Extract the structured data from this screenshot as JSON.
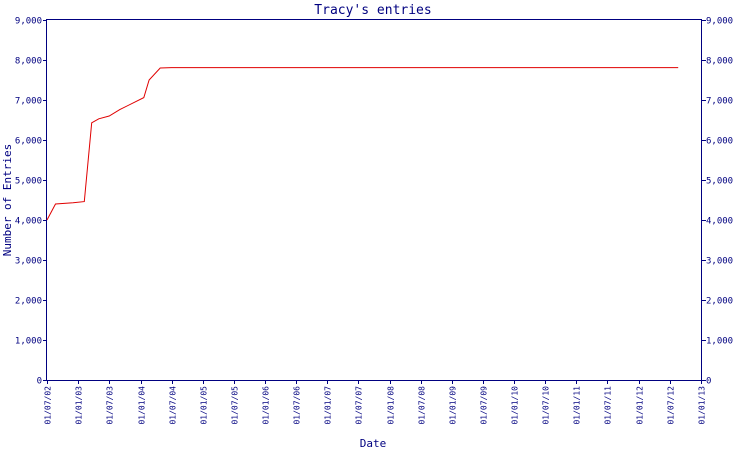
{
  "chart_data": {
    "type": "line",
    "title": "Tracy's entries",
    "xlabel": "Date",
    "ylabel": "Number of Entries",
    "ylim": [
      0,
      9000
    ],
    "xlim": [
      "2002-07-01",
      "2013-01-01"
    ],
    "y_ticks": [
      0,
      1000,
      2000,
      3000,
      4000,
      5000,
      6000,
      7000,
      8000,
      9000
    ],
    "y_tick_labels": [
      "0",
      "1,000",
      "2,000",
      "3,000",
      "4,000",
      "5,000",
      "6,000",
      "7,000",
      "8,000",
      "9,000"
    ],
    "x_ticks": [
      "2002-07-01",
      "2003-01-01",
      "2003-07-01",
      "2004-01-01",
      "2004-07-01",
      "2005-01-01",
      "2005-07-01",
      "2006-01-01",
      "2006-07-01",
      "2007-01-01",
      "2007-07-01",
      "2008-01-01",
      "2008-07-01",
      "2009-01-01",
      "2009-07-01",
      "2010-01-01",
      "2010-07-01",
      "2011-01-01",
      "2011-07-01",
      "2012-01-01",
      "2012-07-01",
      "2013-01-01"
    ],
    "x_tick_labels": [
      "01/07/02",
      "01/01/03",
      "01/07/03",
      "01/01/04",
      "01/07/04",
      "01/01/05",
      "01/07/05",
      "01/01/06",
      "01/07/06",
      "01/01/07",
      "01/07/07",
      "01/01/08",
      "01/07/08",
      "01/01/09",
      "01/07/09",
      "01/01/10",
      "01/07/10",
      "01/01/11",
      "01/07/11",
      "01/01/12",
      "01/07/12",
      "01/01/13"
    ],
    "grid": false,
    "right_axis": true,
    "colors": {
      "line": "#e00000",
      "axis": "#000080",
      "text": "#000080"
    },
    "series": [
      {
        "points": [
          [
            "2002-07-01",
            4000
          ],
          [
            "2002-08-20",
            4400
          ],
          [
            "2002-12-01",
            4430
          ],
          [
            "2003-02-05",
            4460
          ],
          [
            "2003-03-20",
            6430
          ],
          [
            "2003-05-01",
            6530
          ],
          [
            "2003-07-01",
            6600
          ],
          [
            "2003-09-01",
            6760
          ],
          [
            "2004-01-20",
            7060
          ],
          [
            "2004-02-20",
            7500
          ],
          [
            "2004-04-25",
            7800
          ],
          [
            "2004-06-30",
            7810
          ],
          [
            "2012-08-20",
            7810
          ]
        ]
      }
    ]
  }
}
